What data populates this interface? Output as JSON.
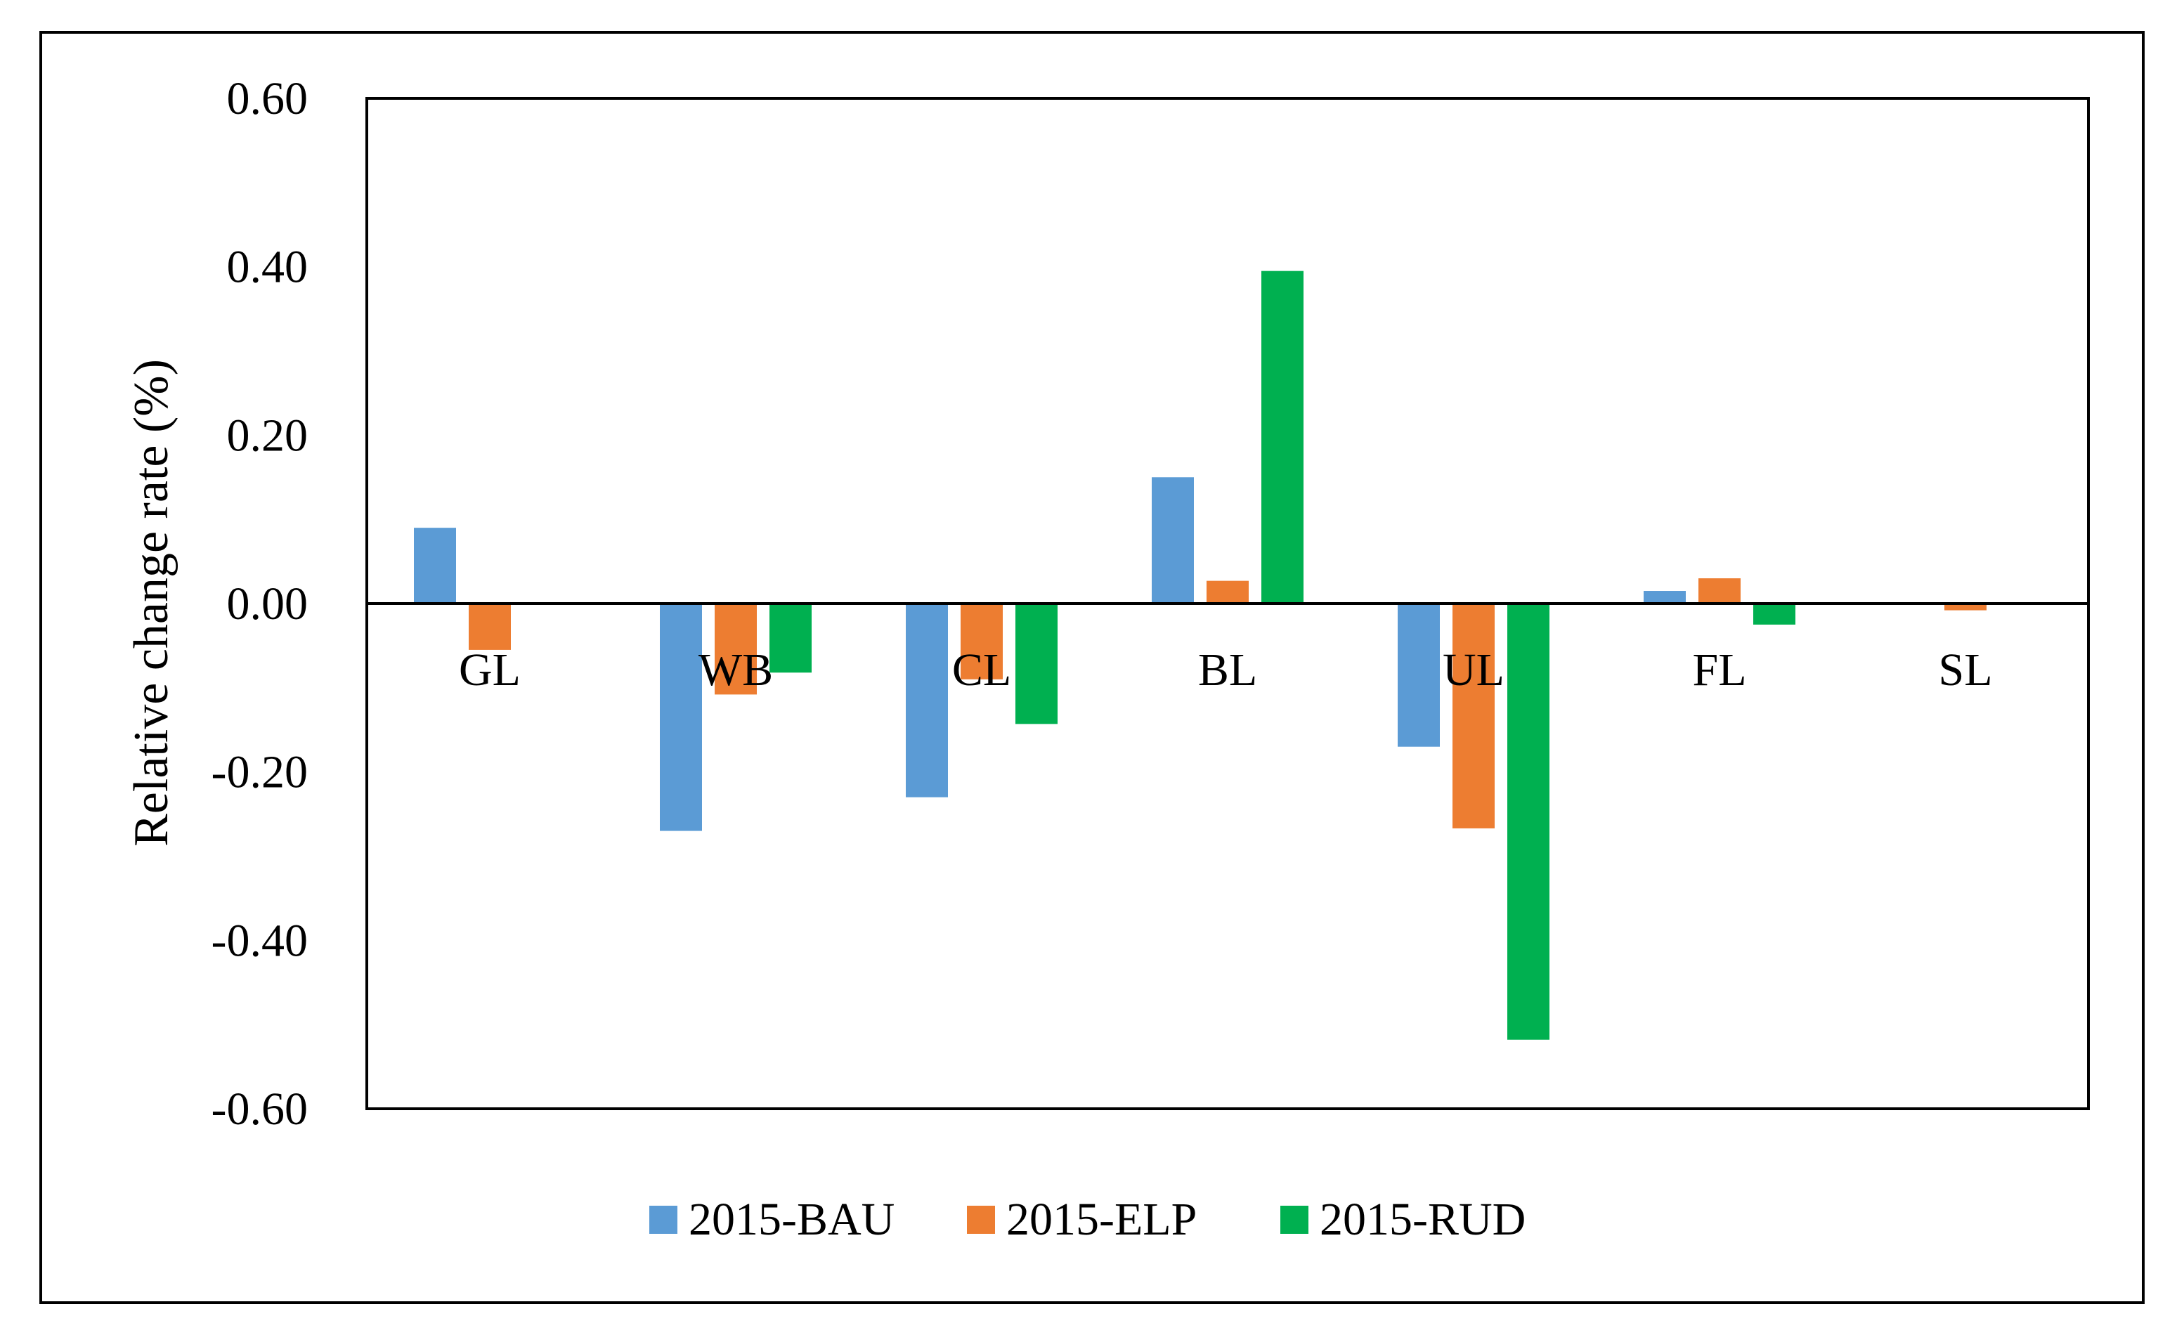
{
  "chart_data": {
    "type": "bar",
    "title": "",
    "xlabel": "",
    "ylabel": "Relative change rate (%)",
    "categories": [
      "GL",
      "WB",
      "CL",
      "BL",
      "UL",
      "FL",
      "SL"
    ],
    "series": [
      {
        "name": "2015-BAU",
        "color": "#5b9bd5",
        "values": [
          0.09,
          -0.27,
          -0.23,
          0.15,
          -0.17,
          0.015,
          0.0
        ]
      },
      {
        "name": "2015-ELP",
        "color": "#ed7d31",
        "values": [
          -0.055,
          -0.108,
          -0.09,
          0.027,
          -0.267,
          0.03,
          -0.008
        ]
      },
      {
        "name": "2015-RUD",
        "color": "#00b050",
        "values": [
          0.0,
          -0.082,
          -0.143,
          0.395,
          -0.518,
          -0.025,
          0.0
        ]
      }
    ],
    "ylim": [
      -0.6,
      0.6
    ],
    "yticks": [
      "0.60",
      "0.40",
      "0.20",
      "0.00",
      "-0.20",
      "-0.40",
      "-0.60"
    ],
    "grid": false,
    "legend_position": "bottom"
  }
}
